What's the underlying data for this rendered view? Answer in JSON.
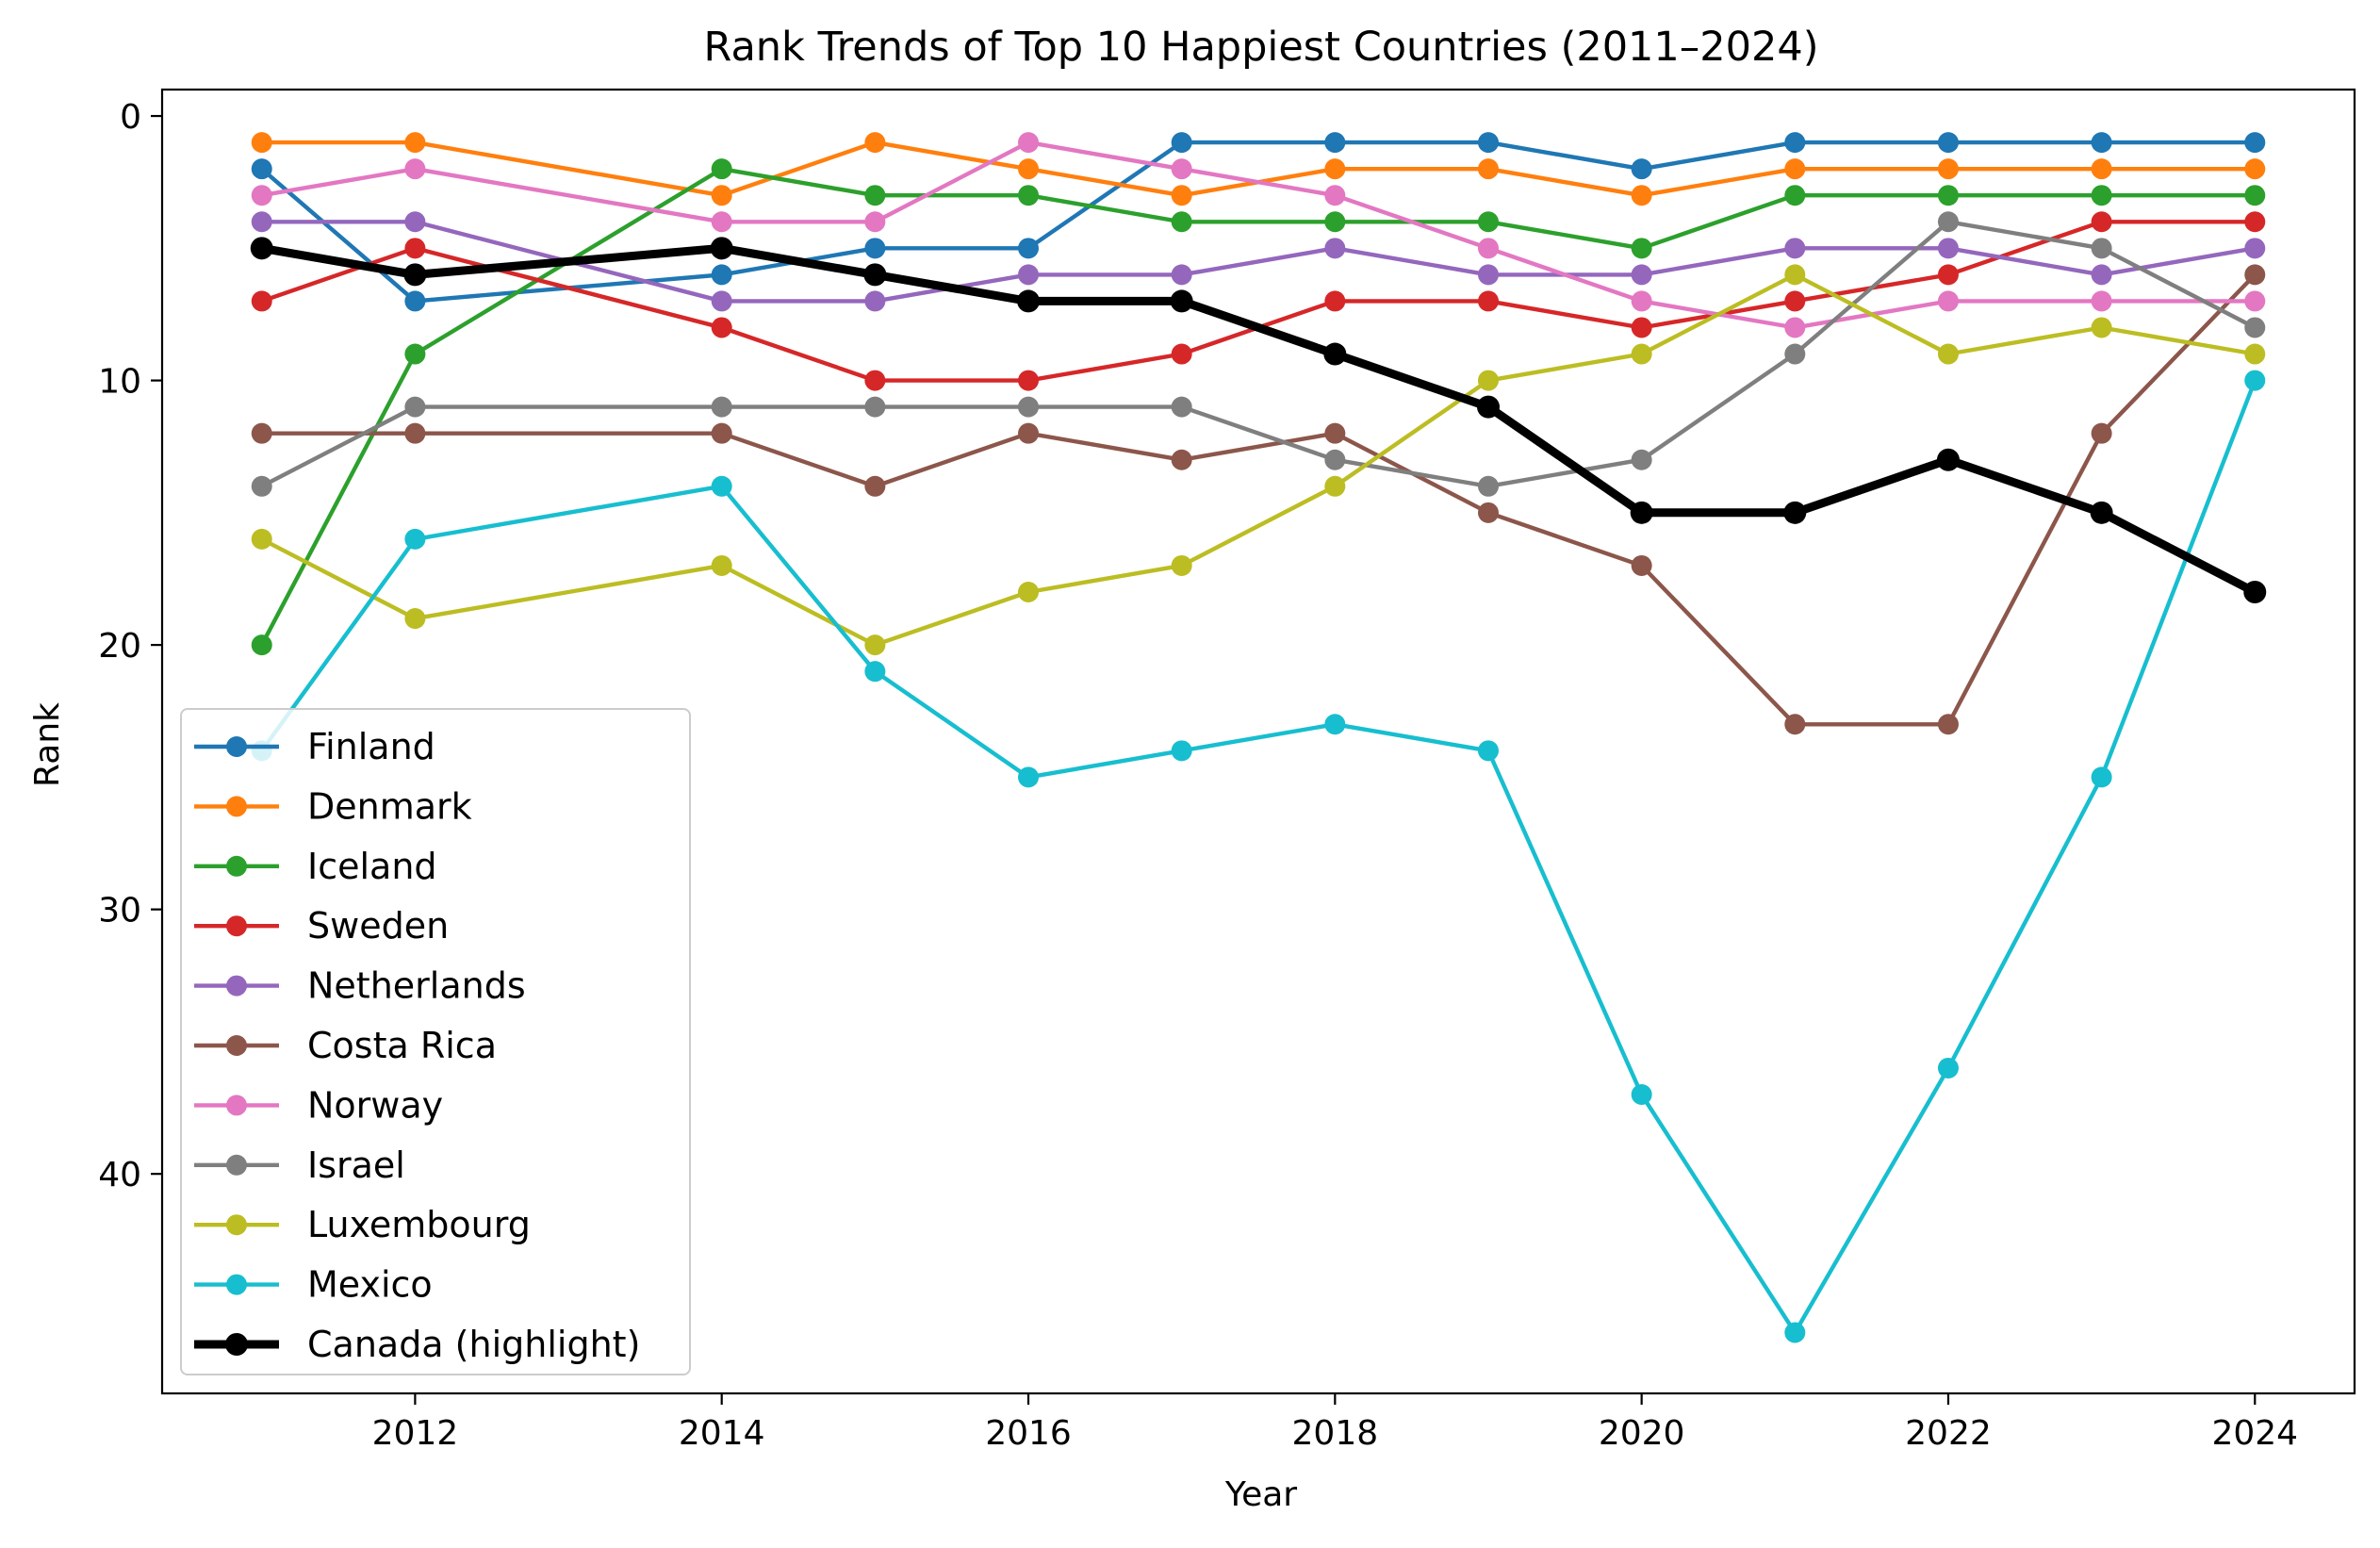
{
  "chart_data": {
    "type": "line",
    "title": "Rank Trends of Top 10 Happiest Countries (2011–2024)",
    "xlabel": "Year",
    "ylabel": "Rank",
    "x": [
      2011,
      2012,
      2014,
      2015,
      2016,
      2017,
      2018,
      2019,
      2020,
      2021,
      2022,
      2023,
      2024
    ],
    "xlim": [
      2010.35,
      2024.65
    ],
    "ylim": [
      48.3,
      -1.0
    ],
    "y_inverted": true,
    "x_ticks": [
      2012,
      2014,
      2016,
      2018,
      2020,
      2022,
      2024
    ],
    "y_ticks": [
      0,
      10,
      20,
      30,
      40
    ],
    "grid": false,
    "legend_placement": "lower-left",
    "series": [
      {
        "name": "Finland",
        "color": "#1f77b4",
        "highlight": false,
        "values": [
          2,
          7,
          6,
          5,
          5,
          1,
          1,
          1,
          2,
          1,
          1,
          1,
          1
        ]
      },
      {
        "name": "Denmark",
        "color": "#ff7f0e",
        "highlight": false,
        "values": [
          1,
          1,
          3,
          1,
          2,
          3,
          2,
          2,
          3,
          2,
          2,
          2,
          2
        ]
      },
      {
        "name": "Iceland",
        "color": "#2ca02c",
        "highlight": false,
        "values": [
          20,
          9,
          2,
          3,
          3,
          4,
          4,
          4,
          5,
          3,
          3,
          3,
          3
        ]
      },
      {
        "name": "Sweden",
        "color": "#d62728",
        "highlight": false,
        "values": [
          7,
          5,
          8,
          10,
          10,
          9,
          7,
          7,
          8,
          7,
          6,
          4,
          4
        ]
      },
      {
        "name": "Netherlands",
        "color": "#9467bd",
        "highlight": false,
        "values": [
          4,
          4,
          7,
          7,
          6,
          6,
          5,
          6,
          6,
          5,
          5,
          6,
          5
        ]
      },
      {
        "name": "Costa Rica",
        "color": "#8c564b",
        "highlight": false,
        "values": [
          12,
          12,
          12,
          14,
          12,
          13,
          12,
          15,
          17,
          23,
          23,
          12,
          6
        ]
      },
      {
        "name": "Norway",
        "color": "#e377c2",
        "highlight": false,
        "values": [
          3,
          2,
          4,
          4,
          1,
          2,
          3,
          5,
          7,
          8,
          7,
          7,
          7
        ]
      },
      {
        "name": "Israel",
        "color": "#7f7f7f",
        "highlight": false,
        "values": [
          14,
          11,
          11,
          11,
          11,
          11,
          13,
          14,
          13,
          9,
          4,
          5,
          8
        ]
      },
      {
        "name": "Luxembourg",
        "color": "#bcbd22",
        "highlight": false,
        "values": [
          16,
          19,
          17,
          20,
          18,
          17,
          14,
          10,
          9,
          6,
          9,
          8,
          9
        ]
      },
      {
        "name": "Mexico",
        "color": "#17becf",
        "highlight": false,
        "values": [
          24,
          16,
          14,
          21,
          25,
          24,
          23,
          24,
          37,
          46,
          36,
          25,
          10
        ]
      },
      {
        "name": "Canada (highlight)",
        "color": "#000000",
        "highlight": true,
        "values": [
          5,
          6,
          5,
          6,
          7,
          7,
          9,
          11,
          15,
          15,
          13,
          15,
          18
        ]
      }
    ]
  }
}
